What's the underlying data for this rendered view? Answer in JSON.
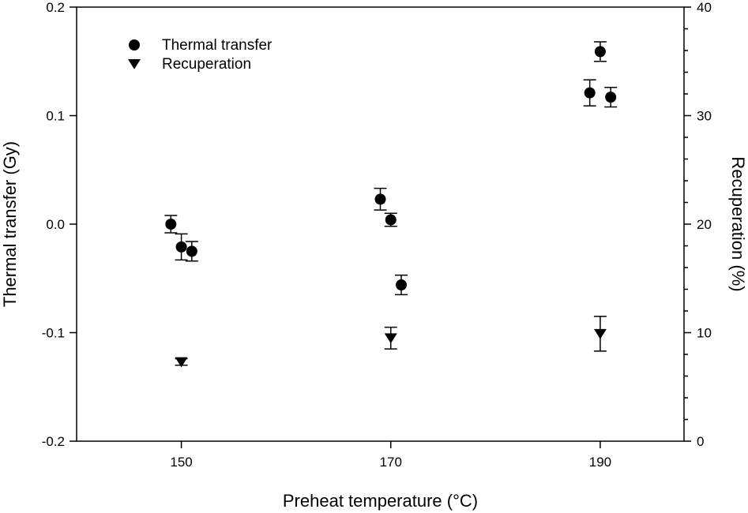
{
  "chart_data": {
    "type": "scatter",
    "xlabel": "Preheat temperature (°C)",
    "ylabel_left": "Thermal transfer (Gy)",
    "ylabel_right": "Recuperation (%)",
    "xlim": [
      140,
      198
    ],
    "ylim_left": [
      -0.2,
      0.2
    ],
    "ylim_right": [
      0,
      40
    ],
    "x_ticks": [
      {
        "value": 150,
        "label": "150"
      },
      {
        "value": 170,
        "label": "170"
      },
      {
        "value": 190,
        "label": "190"
      }
    ],
    "y_ticks_left": [
      {
        "value": 0.2,
        "label": "0.2"
      },
      {
        "value": 0.1,
        "label": "0.1"
      },
      {
        "value": 0.0,
        "label": "0.0"
      },
      {
        "value": -0.1,
        "label": "-0.1"
      },
      {
        "value": -0.2,
        "label": "-0.2"
      }
    ],
    "y_ticks_right": [
      {
        "value": 40,
        "label": "40"
      },
      {
        "value": 30,
        "label": "30"
      },
      {
        "value": 20,
        "label": "20"
      },
      {
        "value": 10,
        "label": "10"
      },
      {
        "value": 0,
        "label": "0"
      }
    ],
    "series": [
      {
        "name": "Thermal transfer",
        "axis": "left",
        "marker": "circle",
        "points": [
          {
            "x": 149,
            "y": 0.0,
            "err": 0.008
          },
          {
            "x": 150,
            "y": -0.021,
            "err": 0.012
          },
          {
            "x": 151,
            "y": -0.025,
            "err": 0.009
          },
          {
            "x": 169,
            "y": 0.023,
            "err": 0.01
          },
          {
            "x": 170,
            "y": 0.004,
            "err": 0.006
          },
          {
            "x": 171,
            "y": -0.056,
            "err": 0.009
          },
          {
            "x": 189,
            "y": 0.121,
            "err": 0.012
          },
          {
            "x": 190,
            "y": 0.159,
            "err": 0.009
          },
          {
            "x": 191,
            "y": 0.117,
            "err": 0.009
          }
        ]
      },
      {
        "name": "Recuperation",
        "axis": "right",
        "marker": "triangle-down",
        "points": [
          {
            "x": 150,
            "y": 7.3,
            "err": 0.3
          },
          {
            "x": 170,
            "y": 9.5,
            "err": 1.0
          },
          {
            "x": 190,
            "y": 9.9,
            "err": 1.6
          }
        ]
      }
    ],
    "legend": [
      {
        "label": "Thermal transfer",
        "marker": "circle"
      },
      {
        "label": "Recuperation",
        "marker": "triangle-down"
      }
    ],
    "legend_position": "top-left",
    "grid": false
  }
}
